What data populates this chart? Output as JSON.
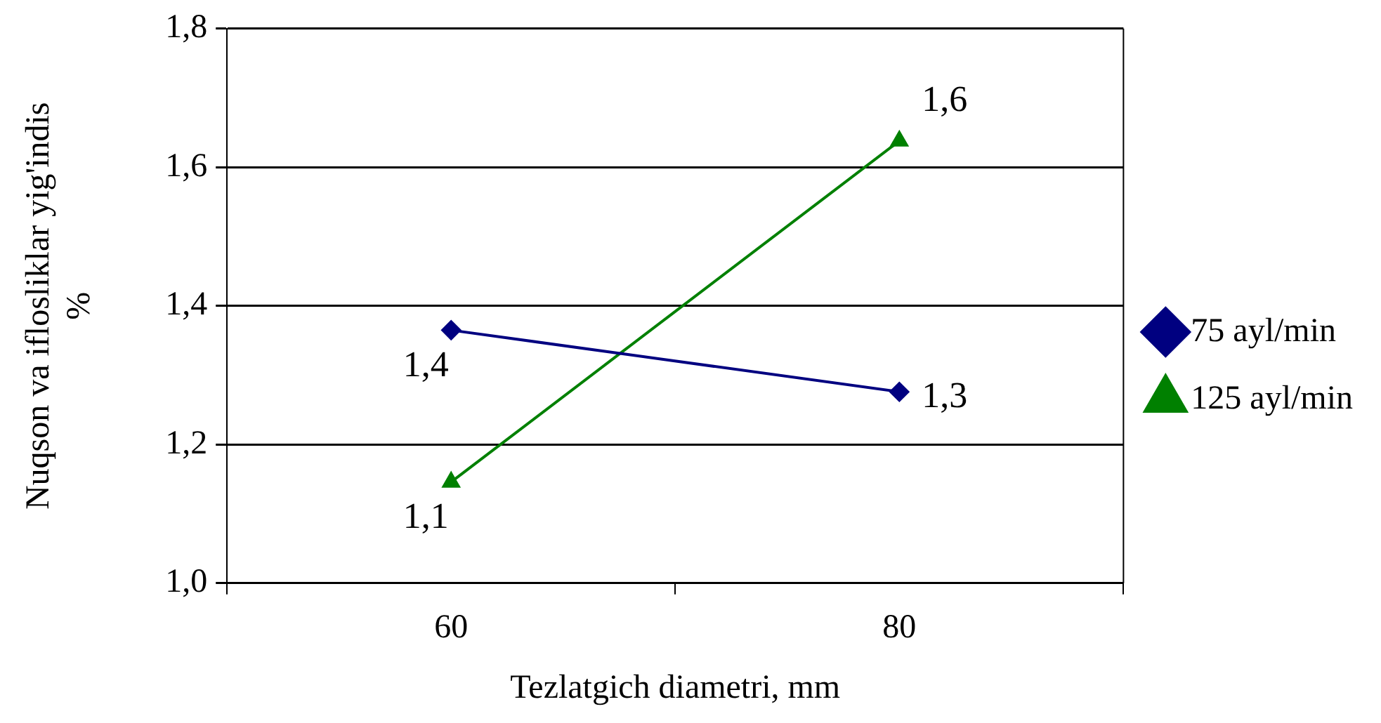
{
  "chart_data": {
    "type": "line",
    "categories": [
      "60",
      "80"
    ],
    "series": [
      {
        "name": "75 ayl/min",
        "color": "#000080",
        "marker": "diamond",
        "values": [
          1.365,
          1.276
        ],
        "value_labels": [
          "1,4",
          "1,3"
        ]
      },
      {
        "name": "125 ayl/min",
        "color": "#008000",
        "marker": "triangle",
        "values": [
          1.146,
          1.638
        ],
        "value_labels": [
          "1,1",
          "1,6"
        ]
      }
    ],
    "xlabel": "Tezlatgich diametri, mm",
    "ylabel": "Nuqson va iflosliklar yig'indis\n%",
    "ylim": [
      1.0,
      1.8
    ],
    "yticks": [
      {
        "value": 1.0,
        "label": "1,0"
      },
      {
        "value": 1.2,
        "label": "1,2"
      },
      {
        "value": 1.4,
        "label": "1,4"
      },
      {
        "value": 1.6,
        "label": "1,6"
      },
      {
        "value": 1.8,
        "label": "1,8"
      }
    ],
    "grid": "y",
    "legend": "right"
  }
}
